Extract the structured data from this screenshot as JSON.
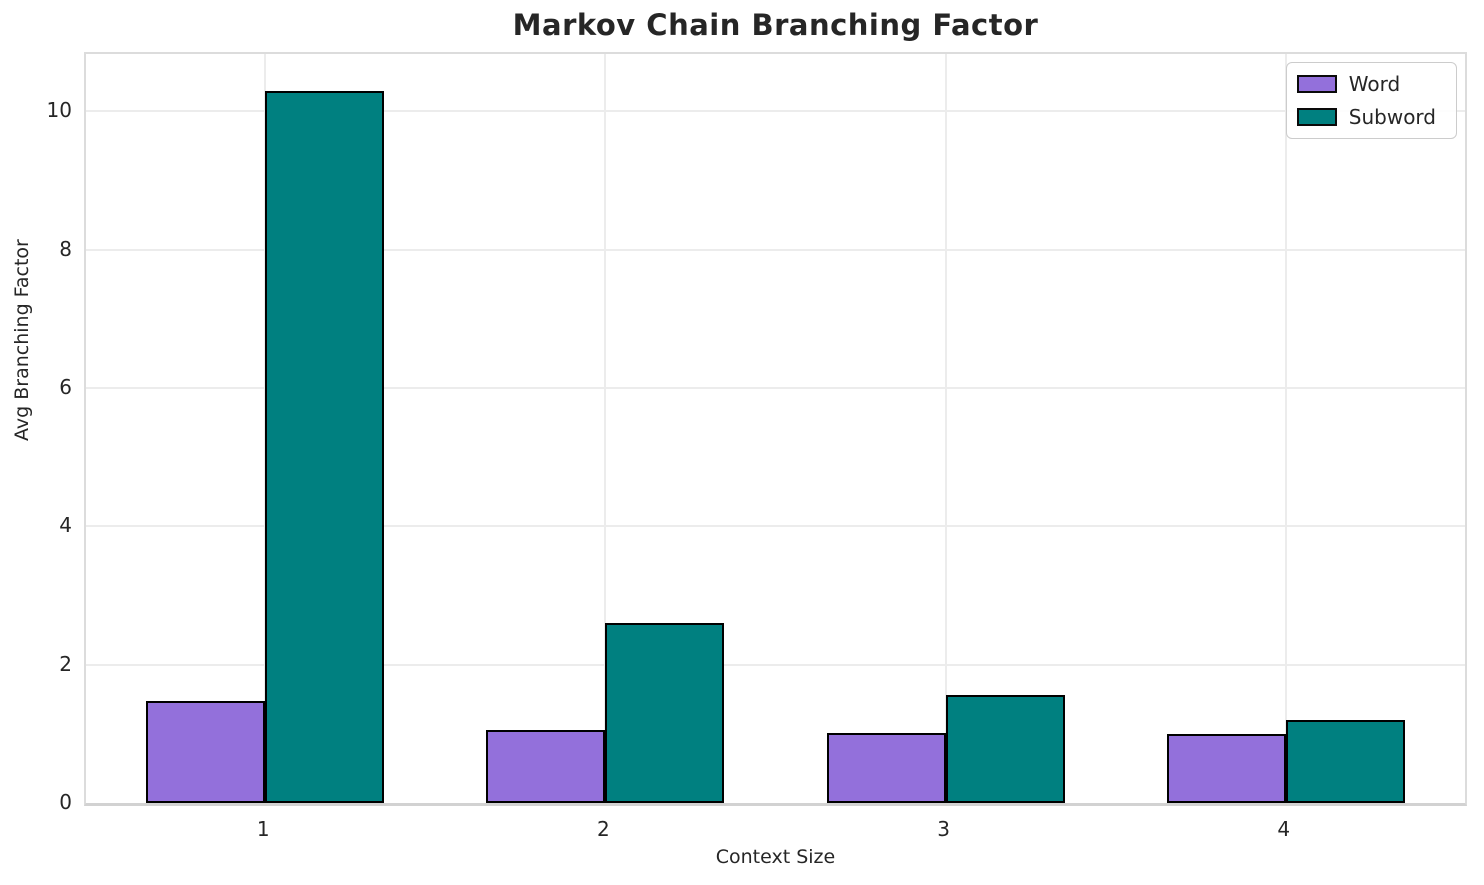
{
  "chart_data": {
    "type": "bar",
    "title": "Markov Chain Branching Factor",
    "xlabel": "Context Size",
    "ylabel": "Avg Branching Factor",
    "categories": [
      "1",
      "2",
      "3",
      "4"
    ],
    "series": [
      {
        "name": "Word",
        "color": "#9370DB",
        "values": [
          1.47,
          1.05,
          1.01,
          1.0
        ]
      },
      {
        "name": "Subword",
        "color": "#008080",
        "values": [
          10.3,
          2.61,
          1.56,
          1.2
        ]
      }
    ],
    "ylim": [
      0,
      10.83
    ],
    "yticks": [
      0,
      2,
      4,
      6,
      8,
      10
    ],
    "grid": true,
    "legend_position": "upper right",
    "bar_edge_color": "#000000",
    "colors": {
      "grid": "#ececec",
      "spine": "#dcdcdc",
      "text": "#262626"
    }
  }
}
